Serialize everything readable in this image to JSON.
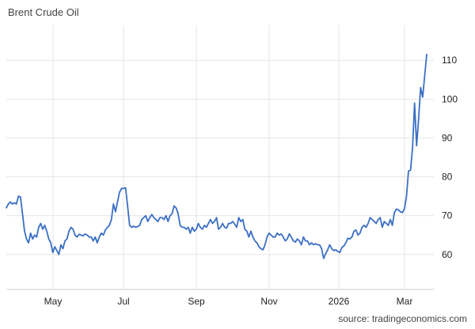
{
  "title": "Brent Crude Oil",
  "source": "source: tradingeconomics.com",
  "colors": {
    "line": "#3a6fc4",
    "grid": "#e6e6e6",
    "axis": "#cfcfcf"
  },
  "chart_data": {
    "type": "line",
    "title": "Brent Crude Oil",
    "xlabel": "",
    "ylabel": "",
    "x_ticks": [
      "May",
      "Jul",
      "Sep",
      "Nov",
      "2026",
      "Mar"
    ],
    "y_ticks": [
      60,
      70,
      80,
      90,
      100,
      110
    ],
    "ylim": [
      51,
      119
    ],
    "grid": true,
    "series": [
      {
        "values": [
          72,
          73,
          73.5,
          73,
          73.3,
          73,
          75,
          74.8,
          70.5,
          66,
          64,
          63,
          65.5,
          64,
          65,
          64.5,
          67,
          68,
          66.5,
          67.5,
          66,
          64,
          63,
          60.5,
          62,
          61,
          60,
          62.5,
          61.5,
          63.5,
          64,
          66,
          67,
          66.5,
          65,
          64.5,
          65.2,
          65,
          64.8,
          65.3,
          65,
          64.5,
          64.5,
          63.5,
          64.5,
          63,
          64.5,
          65.5,
          65,
          66.3,
          67,
          67.5,
          69,
          73,
          71,
          73.5,
          76,
          77,
          77,
          77.2,
          72.5,
          67.5,
          67,
          67.3,
          67,
          67.2,
          67.5,
          69,
          69.5,
          70,
          68.5,
          69.5,
          70.3,
          69.5,
          69,
          68.5,
          69.5,
          69.5,
          69,
          70,
          68.5,
          70,
          70.5,
          72.5,
          72,
          70.5,
          67.5,
          67,
          67,
          66.5,
          67,
          65.5,
          67,
          66,
          66.5,
          68,
          67,
          66.5,
          67.5,
          67,
          68,
          69,
          68,
          68.5,
          69.5,
          66.5,
          67,
          68,
          67,
          66.8,
          68,
          68,
          68.5,
          67.8,
          67,
          69.5,
          68.5,
          69,
          66.5,
          66,
          64.5,
          66,
          64.5,
          63.5,
          63,
          62,
          61.5,
          61.2,
          62.5,
          64.5,
          65.5,
          65,
          64.5,
          64.5,
          65.5,
          65,
          65.3,
          64.5,
          63.5,
          64,
          65.3,
          64.5,
          63.5,
          63.2,
          64,
          63.5,
          62.5,
          64.5,
          63.5,
          63.5,
          62.5,
          63,
          62.5,
          62.8,
          62.5,
          62.5,
          61.5,
          59,
          60.2,
          61.2,
          62.5,
          61.5,
          61,
          61.2,
          60.8,
          60.5,
          61.8,
          62.2,
          63,
          64.2,
          64,
          64.5,
          66,
          66.3,
          65,
          65.5,
          67,
          67.5,
          67,
          68,
          69.5,
          69,
          68.5,
          68,
          69,
          69.5,
          67,
          68.5,
          68,
          67.5,
          69,
          67.5,
          70.8,
          71.7,
          71.5,
          71,
          70.8,
          71.8,
          75,
          81.5,
          81.7,
          87.5,
          99,
          88,
          95,
          103,
          100.5,
          106,
          111.5
        ]
      }
    ]
  }
}
